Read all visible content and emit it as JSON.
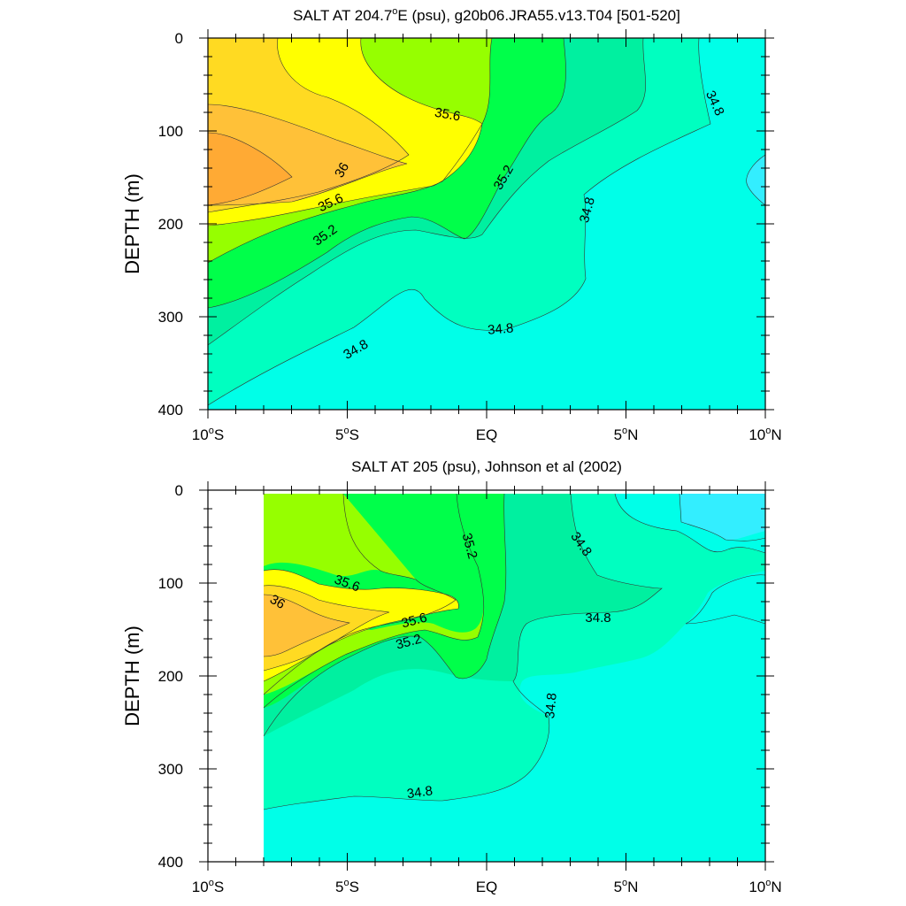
{
  "chart_data": [
    {
      "type": "contour",
      "title": "SALT AT 204.7°E (psu), g20b06.JRA55.v13.T04 [501-520]",
      "title_parts": [
        "SALT AT 204.7",
        "o",
        "E (psu), g20b06.JRA55.v13.T04 [501-520]"
      ],
      "ylabel": "DEPTH (m)",
      "xlim": [
        -10,
        10
      ],
      "ylim": [
        400,
        0
      ],
      "x_ticks": [
        {
          "value": -10,
          "num": "10",
          "deg": "o",
          "hem": "S"
        },
        {
          "value": -5,
          "num": "5",
          "deg": "o",
          "hem": "S"
        },
        {
          "value": 0,
          "num": "EQ",
          "deg": "",
          "hem": ""
        },
        {
          "value": 5,
          "num": "5",
          "deg": "o",
          "hem": "N"
        },
        {
          "value": 10,
          "num": "10",
          "deg": "o",
          "hem": "N"
        }
      ],
      "y_ticks": [
        0,
        100,
        200,
        300,
        400
      ],
      "contour_labels": [
        {
          "text": "35.6",
          "lat": -1.4,
          "depth": 82,
          "angle": 10
        },
        {
          "text": "36",
          "lat": -5.2,
          "depth": 142,
          "angle": -60
        },
        {
          "text": "35.2",
          "lat": 0.6,
          "depth": 150,
          "angle": -60
        },
        {
          "text": "35.6",
          "lat": -5.6,
          "depth": 177,
          "angle": -25
        },
        {
          "text": "35.2",
          "lat": -5.8,
          "depth": 212,
          "angle": -35
        },
        {
          "text": "34.8",
          "lat": 8.2,
          "depth": 70,
          "angle": 65
        },
        {
          "text": "34.8",
          "lat": 3.6,
          "depth": 185,
          "angle": -75
        },
        {
          "text": "34.8",
          "lat": -4.7,
          "depth": 335,
          "angle": -30
        },
        {
          "text": "34.8",
          "lat": 0.5,
          "depth": 313,
          "angle": -5
        }
      ]
    },
    {
      "type": "contour",
      "title": "SALT AT 205 (psu), Johnson et al (2002)",
      "title_parts": [
        "SALT AT 205 (psu), Johnson et al (2002)"
      ],
      "ylabel": "DEPTH (m)",
      "xlim": [
        -10,
        10
      ],
      "ylim": [
        400,
        0
      ],
      "x_ticks": [
        {
          "value": -10,
          "num": "10",
          "deg": "o",
          "hem": "S"
        },
        {
          "value": -5,
          "num": "5",
          "deg": "o",
          "hem": "S"
        },
        {
          "value": 0,
          "num": "EQ",
          "deg": "",
          "hem": ""
        },
        {
          "value": 5,
          "num": "5",
          "deg": "o",
          "hem": "N"
        },
        {
          "value": 10,
          "num": "10",
          "deg": "o",
          "hem": "N"
        }
      ],
      "y_ticks": [
        0,
        100,
        200,
        300,
        400
      ],
      "contour_labels": [
        {
          "text": "35.2",
          "lat": -0.6,
          "depth": 60,
          "angle": 75
        },
        {
          "text": "34.8",
          "lat": 3.4,
          "depth": 58,
          "angle": 55
        },
        {
          "text": "35.6",
          "lat": -5,
          "depth": 100,
          "angle": 20
        },
        {
          "text": "36",
          "lat": -7.5,
          "depth": 120,
          "angle": 30
        },
        {
          "text": "35.6",
          "lat": -2.6,
          "depth": 140,
          "angle": -15
        },
        {
          "text": "35.2",
          "lat": -2.8,
          "depth": 163,
          "angle": -15
        },
        {
          "text": "34.8",
          "lat": 4,
          "depth": 137,
          "angle": 0
        },
        {
          "text": "34.8",
          "lat": 2.3,
          "depth": 232,
          "angle": -85
        },
        {
          "text": "34.8",
          "lat": -2.4,
          "depth": 325,
          "angle": -8
        }
      ]
    }
  ],
  "colors": {
    "lt34.8": "#00FFE8",
    "34.8-35.0": "#00FFC0",
    "35.0-35.2": "#00F0A0",
    "35.2-35.4": "#00FF4A",
    "35.4-35.6": "#96FF00",
    "35.6-35.8": "#FFFF00",
    "35.8-36.0": "#FFDA22",
    "36.0-36.2": "#FFC138",
    "gt36.2": "#FFAA34",
    "cyan_deep": "#33EEFF"
  }
}
